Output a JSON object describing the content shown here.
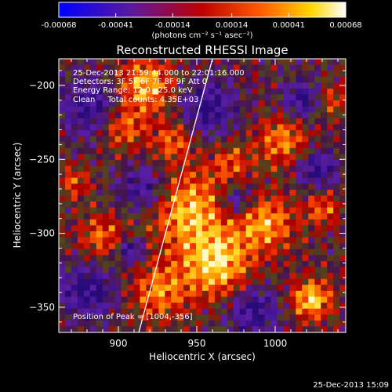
{
  "chart_data": {
    "type": "heatmap",
    "title": "Reconstructed RHESSI Image",
    "xlabel": "Heliocentric X (arcsec)",
    "ylabel": "Heliocentric Y (arcsec)",
    "xlim": [
      862,
      1045
    ],
    "ylim": [
      -367,
      -182
    ],
    "x_ticks": [
      "900",
      "950",
      "1000"
    ],
    "x_tick_values": [
      900,
      950,
      1000
    ],
    "y_ticks": [
      "-200",
      "-250",
      "-300",
      "-350"
    ],
    "y_tick_values": [
      -200,
      -250,
      -300,
      -350
    ],
    "colorbar": {
      "ticks": [
        "-0.00068",
        "-0.00041",
        "-0.00014",
        "0.00014",
        "0.00041",
        "0.00068"
      ],
      "tick_values": [
        -0.00068,
        -0.00041,
        -0.00014,
        0.00014,
        0.00041,
        0.00068
      ],
      "range": [
        -0.00068,
        0.00068
      ],
      "units_label": "(photons cm⁻² s⁻¹ asec⁻²)",
      "colormap": "blue-purple-red-orange-yellow-white"
    },
    "annotations": [
      "25-Dec-2013 21:59:44.000 to 22:01:16.000",
      "Detectors: 3F 5F 6F 7F 8F 9F Att 0",
      "Energy Range: 12.0 - 25.0 keV",
      "Clean     Total counts: 4.35E+03"
    ],
    "peak_label": "Position of Peak = [1004,-356]",
    "peak_position": [
      1004,
      -356
    ],
    "limb_line": {
      "x": [
        913,
        960
      ],
      "y": [
        -367,
        -182
      ]
    },
    "grid_size": 46
  },
  "footer": {
    "timestamp": "25-Dec-2013 15:09"
  },
  "colors": {
    "background": "#000000",
    "text": "#ffffff",
    "limb": "#ffffff"
  }
}
